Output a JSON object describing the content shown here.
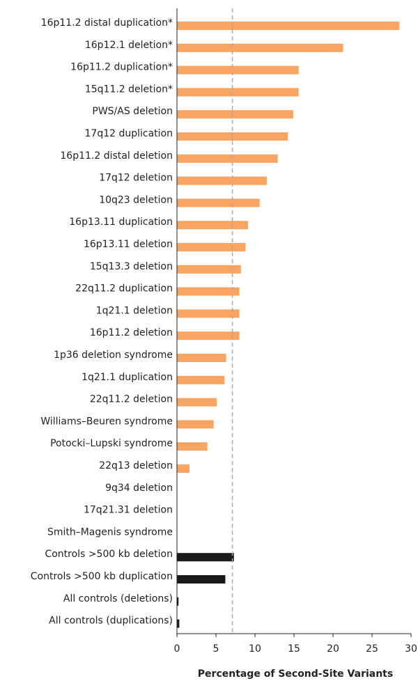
{
  "chart_data": {
    "type": "bar",
    "orientation": "horizontal",
    "x_label": "Percentage of Second-Site Variants",
    "categories": [
      "16p11.2 distal duplication*",
      "16p12.1 deletion*",
      "16p11.2 duplication*",
      "15q11.2 deletion*",
      "PWS/AS deletion",
      "17q12 duplication",
      "16p11.2 distal deletion",
      "17q12 deletion",
      "10q23 deletion",
      "16p13.11 duplication",
      "16p13.11 deletion",
      "15q13.3 deletion",
      "22q11.2 duplication",
      "1q21.1 deletion",
      "16p11.2 deletion",
      "1p36 deletion syndrome",
      "1q21.1 duplication",
      "22q11.2 deletion",
      "Williams–Beuren syndrome",
      "Potocki–Lupski syndrome",
      "22q13 deletion",
      "9q34 deletion",
      "17q21.31 deletion",
      "Smith–Magenis syndrome",
      "Controls >500 kb deletion",
      "Controls >500 kb duplication",
      "All controls (deletions)",
      "All controls (duplications)"
    ],
    "values": [
      28.5,
      21.3,
      15.6,
      15.6,
      14.9,
      14.2,
      12.9,
      11.5,
      10.6,
      9.1,
      8.8,
      8.2,
      8.0,
      8.0,
      8.0,
      6.3,
      6.1,
      5.1,
      4.7,
      3.9,
      1.6,
      0,
      0,
      0,
      7.3,
      6.2,
      0.2,
      0.3
    ],
    "colors": [
      "#f9a460",
      "#f9a460",
      "#f9a460",
      "#f9a460",
      "#f9a460",
      "#f9a460",
      "#f9a460",
      "#f9a460",
      "#f9a460",
      "#f9a460",
      "#f9a460",
      "#f9a460",
      "#f9a460",
      "#f9a460",
      "#f9a460",
      "#f9a460",
      "#f9a460",
      "#f9a460",
      "#f9a460",
      "#f9a460",
      "#f9a460",
      "#f9a460",
      "#f9a460",
      "#f9a460",
      "#1a1a1a",
      "#1a1a1a",
      "#1a1a1a",
      "#1a1a1a"
    ],
    "reference_line": 7.1,
    "xlim": [
      0,
      30
    ],
    "xticks": [
      0,
      5,
      10,
      15,
      20,
      25,
      30
    ]
  }
}
